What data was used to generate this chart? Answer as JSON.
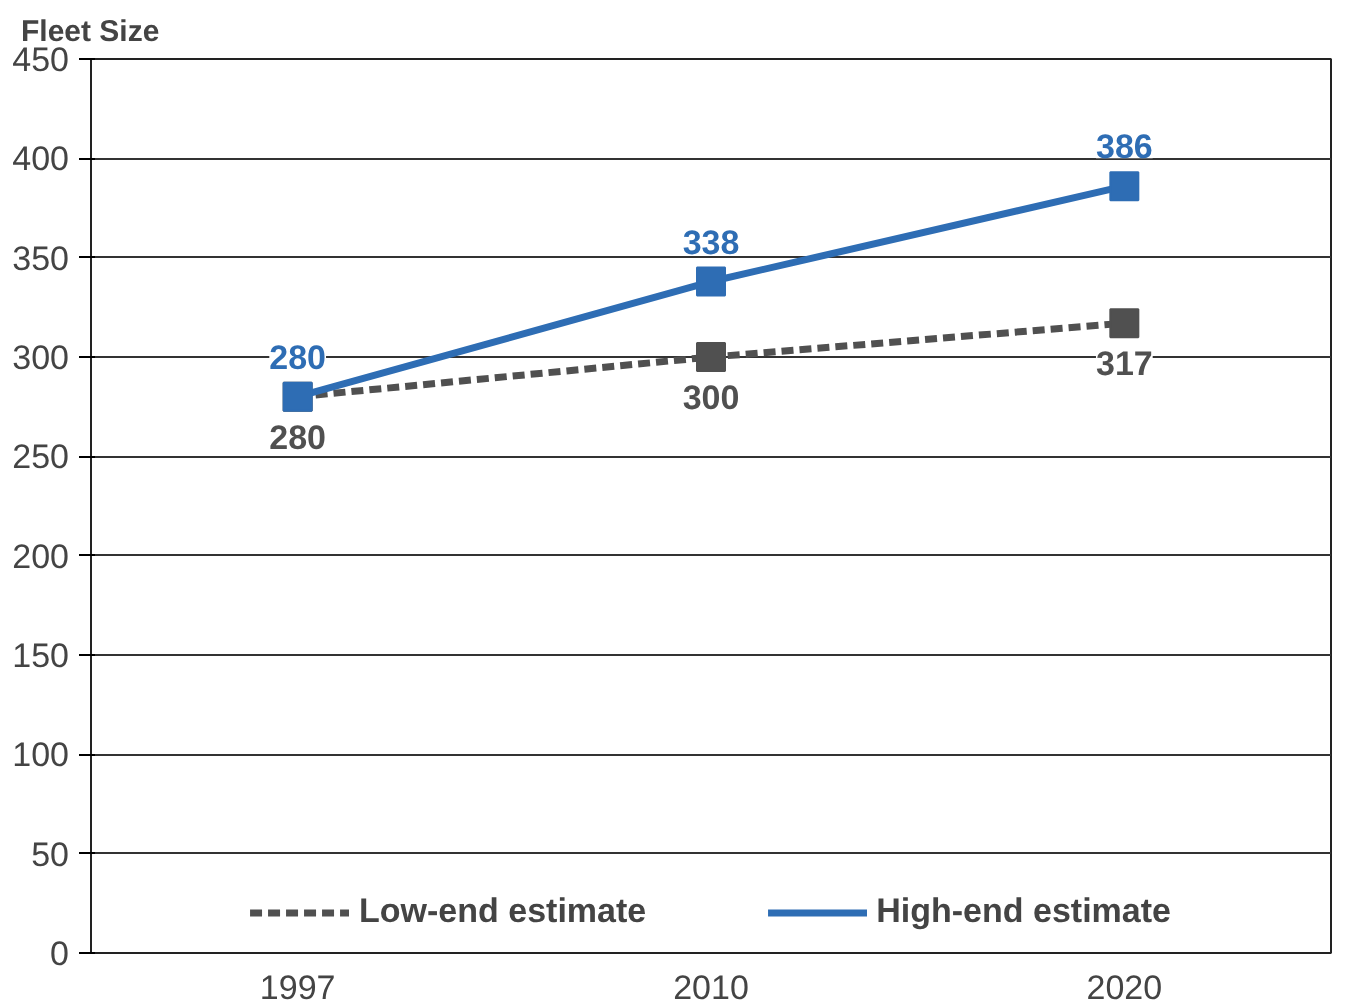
{
  "chart_data": {
    "type": "line",
    "ylabel": "Fleet Size",
    "categories": [
      "1997",
      "2010",
      "2020"
    ],
    "series": [
      {
        "name": "Low-end estimate",
        "color": "#505050",
        "values": [
          280,
          300,
          317
        ],
        "line_style": "dashed"
      },
      {
        "name": "High-end estimate",
        "color": "#2e6db4",
        "values": [
          280,
          338,
          386
        ],
        "line_style": "solid"
      }
    ],
    "ylim": [
      0,
      450
    ],
    "yticks": [
      0,
      50,
      100,
      150,
      200,
      250,
      300,
      350,
      400,
      450
    ],
    "grid": "y",
    "legend": "bottom",
    "marker": "square",
    "data_labels": true
  }
}
